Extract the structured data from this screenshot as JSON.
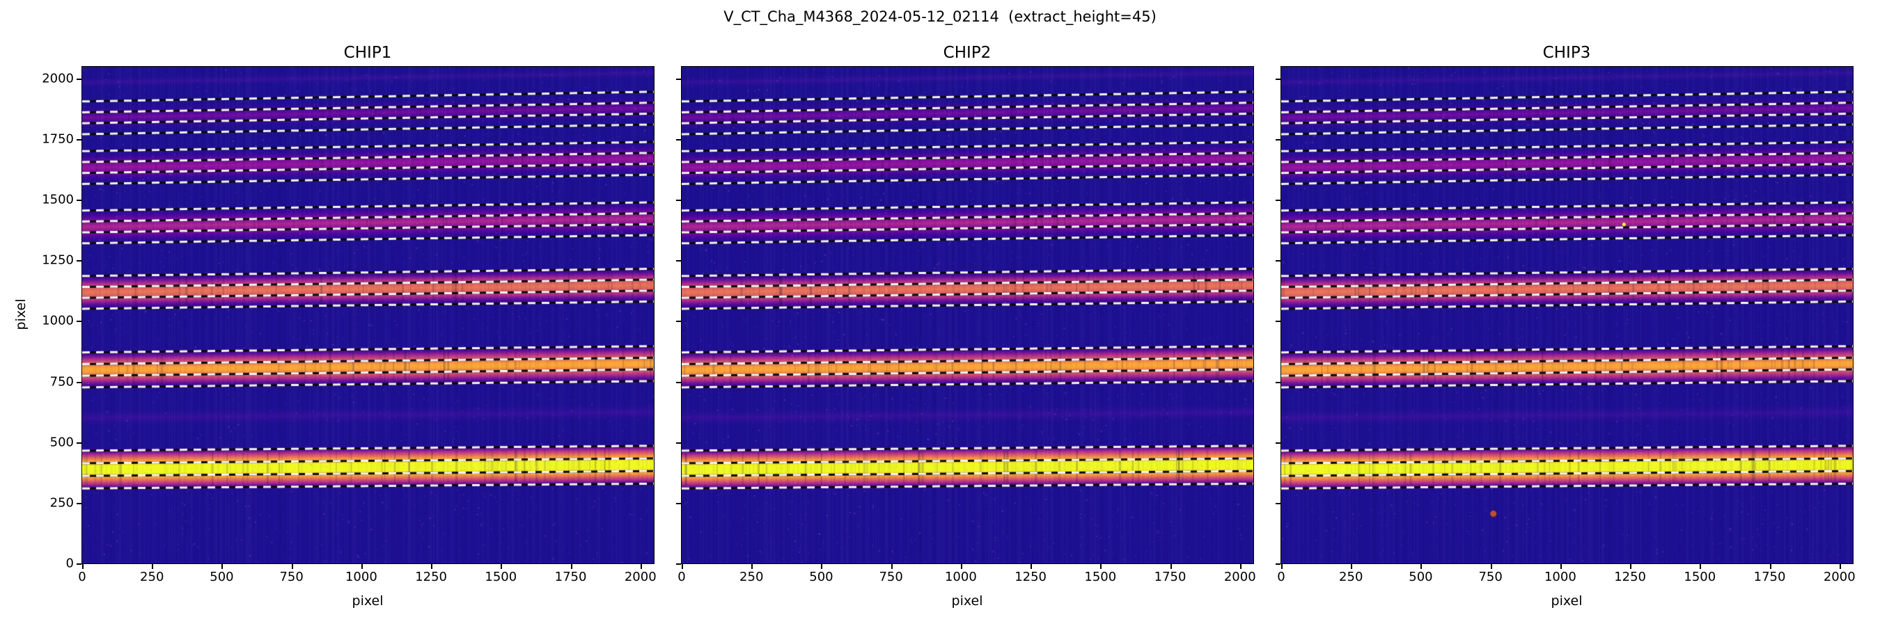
{
  "chart_data": {
    "type": "heatmap",
    "title": "V_CT_Cha_M4368_2024-05-12_02114  (extract_height=45)",
    "xlabel": "pixel",
    "ylabel": "pixel",
    "x_range": [
      0,
      2048
    ],
    "y_range": [
      0,
      2048
    ],
    "x_ticks": [
      0,
      250,
      500,
      750,
      1000,
      1250,
      1500,
      1750,
      2000
    ],
    "y_ticks": [
      0,
      250,
      500,
      750,
      1000,
      1250,
      1500,
      1750,
      2000
    ],
    "colormap": "plasma",
    "background_color": "#1e1093",
    "extract_height": 45,
    "trace_style": {
      "dash_white": "#f5f5f5",
      "dash_black": "#0a0a0a",
      "line_width": 3,
      "dash_on": 11,
      "dash_off": 9
    },
    "panels": [
      {
        "title": "CHIP1",
        "artifacts": []
      },
      {
        "title": "CHIP2",
        "artifacts": []
      },
      {
        "title": "CHIP3",
        "artifacts": [
          {
            "x": 760,
            "y": 205,
            "r": 6,
            "color": "rgba(205,80,42,0.95)"
          },
          {
            "x": 1228,
            "y": 1398,
            "r": 3.5,
            "color": "rgba(255,232,79,1)"
          }
        ]
      }
    ],
    "orders": [
      {
        "name": "faint-strip-top",
        "center": 1983,
        "half": 26,
        "slope": 40,
        "abs_lines": 0,
        "stops": [
          [
            0,
            "rgba(30,16,147,0)"
          ],
          [
            0.5,
            "rgba(90,20,170,0.40)"
          ],
          [
            1,
            "rgba(30,16,147,0)"
          ]
        ]
      },
      {
        "name": "order-band-1",
        "center": 1838,
        "half": 62,
        "slope": 40,
        "abs_lines": 6,
        "stops": [
          [
            0,
            "rgba(30,16,147,0)"
          ],
          [
            0.28,
            "rgba(86,1,164,0.45)"
          ],
          [
            0.5,
            "rgba(143,13,164,0.75)"
          ],
          [
            0.72,
            "rgba(86,1,164,0.45)"
          ],
          [
            1,
            "rgba(30,16,147,0)"
          ]
        ]
      },
      {
        "name": "order-band-2",
        "center": 1632,
        "half": 78,
        "slope": 38,
        "abs_lines": 10,
        "stops": [
          [
            0,
            "rgba(30,16,147,0)"
          ],
          [
            0.22,
            "rgba(86,1,164,0.5)"
          ],
          [
            0.4,
            "rgba(143,13,164,0.85)"
          ],
          [
            0.5,
            "rgba(156,23,158,0.95)"
          ],
          [
            0.6,
            "rgba(143,13,164,0.85)"
          ],
          [
            0.78,
            "rgba(86,1,164,0.5)"
          ],
          [
            1,
            "rgba(30,16,147,0)"
          ]
        ]
      },
      {
        "name": "order-band-3",
        "center": 1388,
        "half": 80,
        "slope": 34,
        "abs_lines": 16,
        "stops": [
          [
            0,
            "rgba(30,16,147,0)"
          ],
          [
            0.18,
            "rgba(86,1,164,0.55)"
          ],
          [
            0.36,
            "rgba(143,13,164,0.9)"
          ],
          [
            0.5,
            "rgba(177,42,144,1)"
          ],
          [
            0.64,
            "rgba(143,13,164,0.9)"
          ],
          [
            0.82,
            "rgba(86,1,164,0.55)"
          ],
          [
            1,
            "rgba(30,16,147,0)"
          ]
        ]
      },
      {
        "name": "order-band-4",
        "center": 1118,
        "half": 82,
        "slope": 30,
        "abs_lines": 26,
        "stops": [
          [
            0,
            "rgba(30,16,147,0)"
          ],
          [
            0.14,
            "rgba(86,1,164,0.6)"
          ],
          [
            0.28,
            "rgba(177,42,144,0.95)"
          ],
          [
            0.42,
            "rgba(225,100,98,1)"
          ],
          [
            0.5,
            "rgba(235,120,85,1)"
          ],
          [
            0.58,
            "rgba(225,100,98,1)"
          ],
          [
            0.72,
            "rgba(177,42,144,0.95)"
          ],
          [
            0.86,
            "rgba(86,1,164,0.6)"
          ],
          [
            1,
            "rgba(30,16,147,0)"
          ]
        ]
      },
      {
        "name": "order-band-5",
        "center": 798,
        "half": 88,
        "slope": 26,
        "abs_lines": 32,
        "stops": [
          [
            0,
            "rgba(30,16,147,0)"
          ],
          [
            0.12,
            "rgba(86,1,164,0.6)"
          ],
          [
            0.24,
            "rgba(177,42,144,0.95)"
          ],
          [
            0.35,
            "rgba(225,100,98,1)"
          ],
          [
            0.46,
            "rgba(252,166,54,1)"
          ],
          [
            0.54,
            "rgba(252,166,54,1)"
          ],
          [
            0.65,
            "rgba(225,100,98,1)"
          ],
          [
            0.76,
            "rgba(177,42,144,0.95)"
          ],
          [
            0.88,
            "rgba(86,1,164,0.6)"
          ],
          [
            1,
            "rgba(30,16,147,0)"
          ]
        ]
      },
      {
        "name": "faint-strip-mid",
        "center": 600,
        "half": 42,
        "slope": 24,
        "abs_lines": 0,
        "stops": [
          [
            0,
            "rgba(30,16,147,0)"
          ],
          [
            0.5,
            "rgba(86,16,170,0.45)"
          ],
          [
            1,
            "rgba(30,16,147,0)"
          ]
        ]
      },
      {
        "name": "order-band-6",
        "center": 387,
        "half": 92,
        "slope": 20,
        "abs_lines": 42,
        "stops": [
          [
            0,
            "rgba(30,16,147,0)"
          ],
          [
            0.08,
            "rgba(86,1,164,0.65)"
          ],
          [
            0.16,
            "rgba(177,42,144,0.95)"
          ],
          [
            0.24,
            "rgba(225,100,98,1)"
          ],
          [
            0.32,
            "rgba(252,166,54,1)"
          ],
          [
            0.42,
            "rgba(240,249,33,1)"
          ],
          [
            0.58,
            "rgba(240,249,33,1)"
          ],
          [
            0.68,
            "rgba(252,166,54,1)"
          ],
          [
            0.76,
            "rgba(225,100,98,1)"
          ],
          [
            0.84,
            "rgba(177,42,144,0.95)"
          ],
          [
            0.92,
            "rgba(86,1,164,0.65)"
          ],
          [
            1,
            "rgba(30,16,147,0)"
          ]
        ]
      }
    ],
    "trace_groups": [
      {
        "slope": 40,
        "lines": [
          1905,
          1860,
          1815,
          1770
        ]
      },
      {
        "slope": 38,
        "lines": [
          1700,
          1655,
          1610,
          1565
        ]
      },
      {
        "slope": 34,
        "lines": [
          1455,
          1410,
          1365,
          1320
        ]
      },
      {
        "slope": 30,
        "lines": [
          1185,
          1140,
          1095,
          1050
        ]
      },
      {
        "slope": 26,
        "lines": [
          870,
          822,
          774,
          726
        ]
      },
      {
        "slope": 20,
        "lines": [
          465,
          413,
          361,
          309
        ]
      }
    ]
  }
}
